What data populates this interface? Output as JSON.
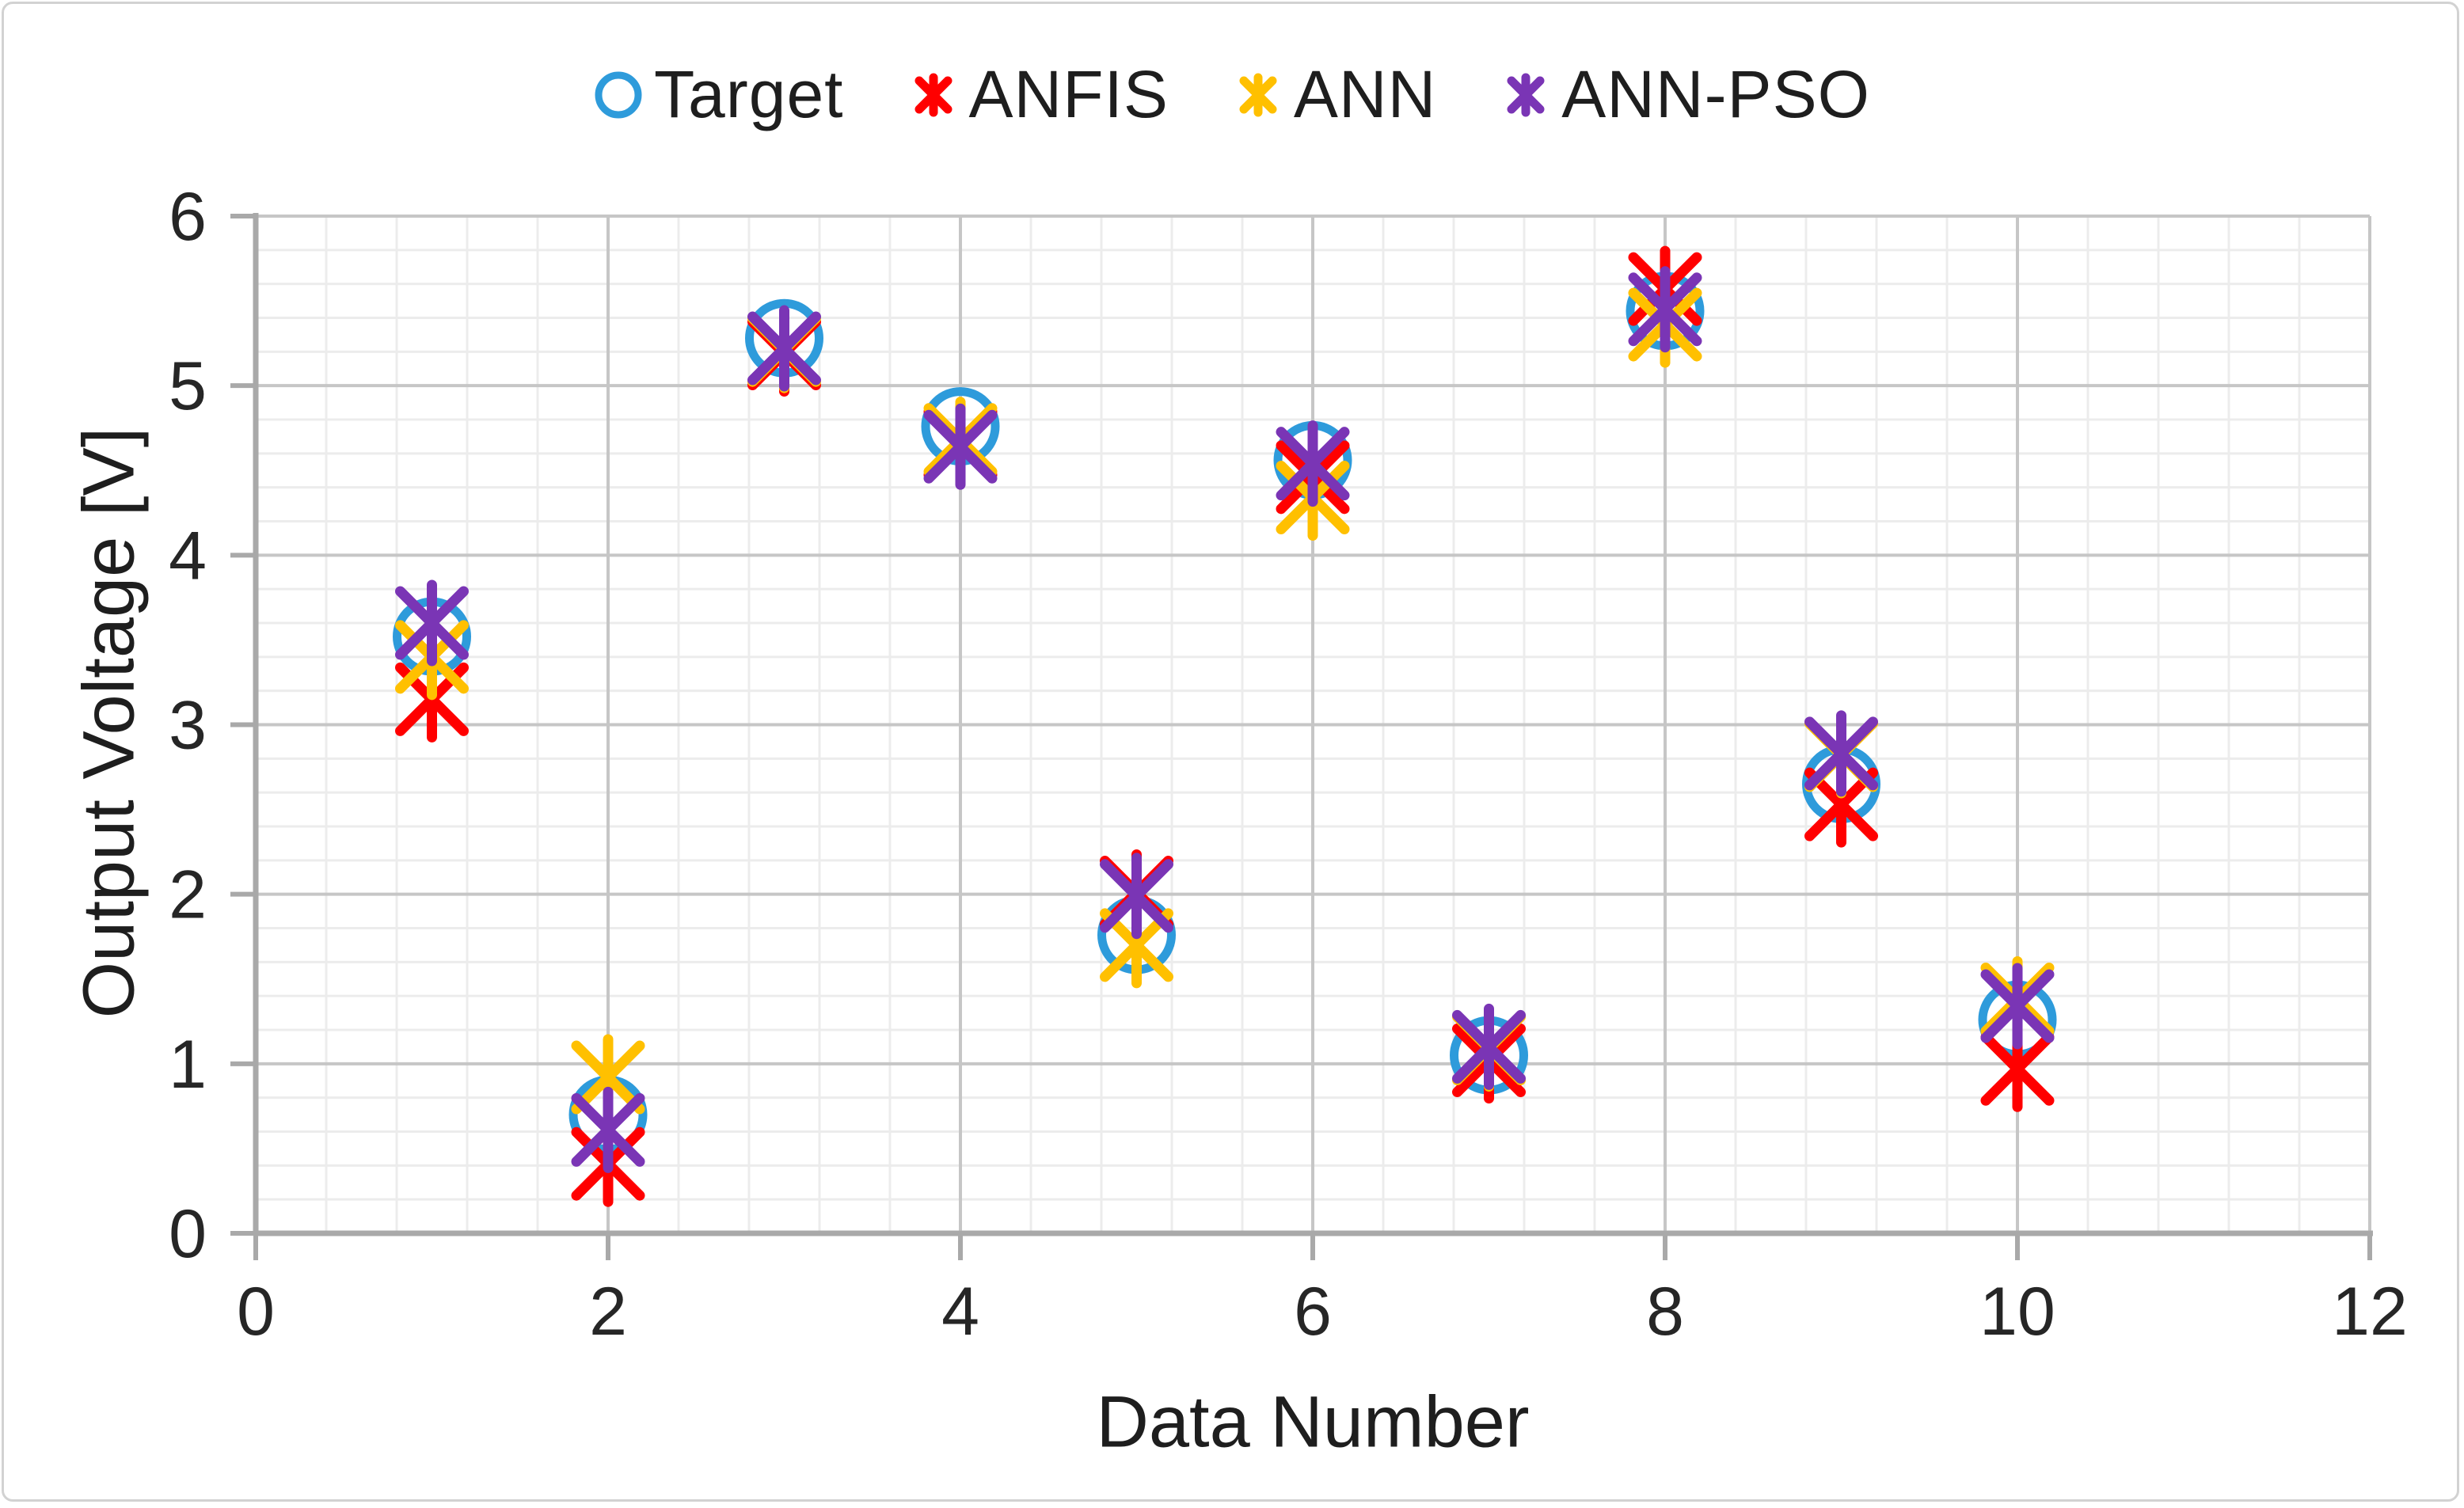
{
  "chart_data": {
    "type": "scatter",
    "title": "",
    "xlabel": "Data Number",
    "ylabel": "Output Voltage [V]",
    "xlim": [
      0,
      12
    ],
    "ylim": [
      0,
      6
    ],
    "x_major_ticks": [
      0,
      2,
      4,
      6,
      8,
      10,
      12
    ],
    "y_major_ticks": [
      0,
      1,
      2,
      3,
      4,
      5,
      6
    ],
    "x_minor_step": 0.4,
    "y_minor_step": 0.2,
    "grid": true,
    "legend_position": "top-center",
    "x": [
      1,
      2,
      3,
      4,
      5,
      6,
      7,
      8,
      9,
      10
    ],
    "series": [
      {
        "name": "Target",
        "marker": "circle",
        "color": "#2E9BDB",
        "values": [
          3.52,
          0.7,
          5.28,
          4.76,
          1.76,
          4.56,
          1.05,
          5.44,
          2.65,
          1.26
        ]
      },
      {
        "name": "ANFIS",
        "marker": "asterisk",
        "color": "#FF0000",
        "values": [
          3.15,
          0.41,
          5.19,
          4.66,
          2.01,
          4.46,
          1.02,
          5.57,
          2.53,
          0.97
        ]
      },
      {
        "name": "ANN",
        "marker": "asterisk",
        "color": "#FFC000",
        "values": [
          3.4,
          0.92,
          5.21,
          4.68,
          1.7,
          4.34,
          1.09,
          5.36,
          2.82,
          1.38
        ]
      },
      {
        "name": "ANN-PSO",
        "marker": "asterisk",
        "color": "#7A35B5",
        "values": [
          3.6,
          0.61,
          5.22,
          4.64,
          1.99,
          4.54,
          1.1,
          5.45,
          2.83,
          1.34
        ]
      }
    ],
    "style": {
      "axis_color": "#a9a9a9",
      "major_grid_color": "#c6c6c6",
      "minor_grid_color": "#ececec",
      "tick_label_color": "#262626"
    }
  }
}
